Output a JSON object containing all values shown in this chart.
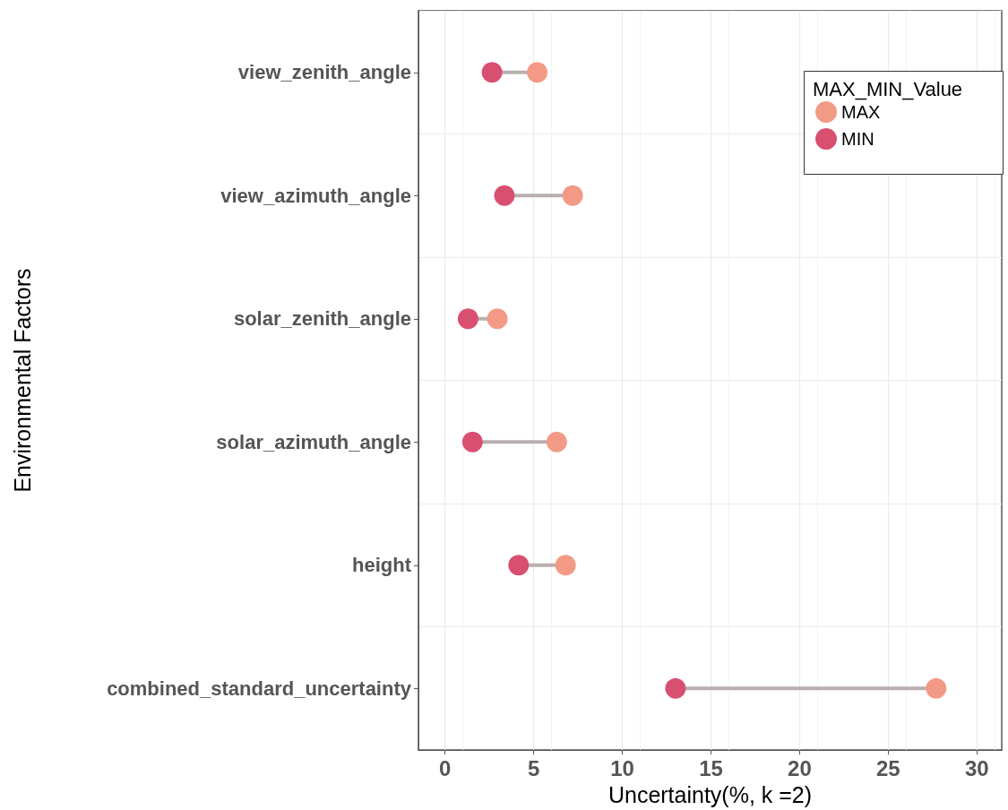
{
  "chart_data": {
    "type": "lollipop",
    "orientation": "horizontal",
    "xlabel": "Uncertainty(%, k =2)",
    "ylabel": "Environmental Factors",
    "legend_title": "MAX_MIN_Value",
    "categories": [
      "view_zenith_angle",
      "view_azimuth_angle",
      "solar_zenith_angle",
      "solar_azimuth_angle",
      "height",
      "combined_standard_uncertainty"
    ],
    "series": [
      {
        "name": "MAX",
        "color": "#f29a86",
        "values": [
          5.2,
          7.2,
          2.95,
          6.3,
          6.8,
          27.7
        ]
      },
      {
        "name": "MIN",
        "color": "#d94f70",
        "values": [
          2.65,
          3.35,
          1.3,
          1.55,
          4.15,
          13.0
        ]
      }
    ],
    "xlim": [
      -1.5,
      31.4
    ],
    "xticks": [
      0,
      5,
      10,
      15,
      20,
      25,
      30
    ],
    "grid": true,
    "legend": "top right",
    "marker": "circle"
  }
}
